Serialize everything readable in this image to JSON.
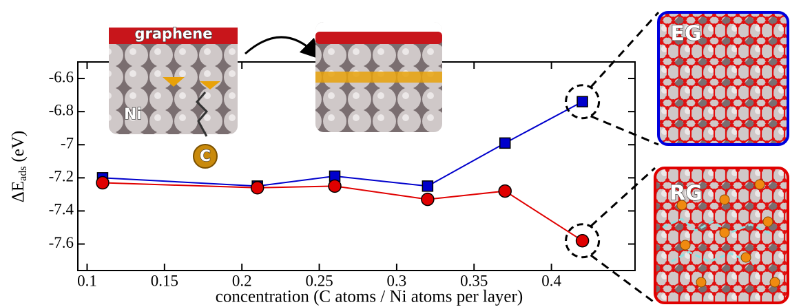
{
  "chart_data": {
    "type": "line",
    "x_label": "concentration (C atoms / Ni atoms per layer)",
    "y_label": {
      "main": "ΔE",
      "sub": "ads",
      "unit": "(eV)"
    },
    "x": [
      0.11,
      0.21,
      0.26,
      0.32,
      0.37,
      0.42
    ],
    "series": [
      {
        "color": "#0000cc",
        "marker": "square",
        "values": [
          -7.2,
          -7.25,
          -7.19,
          -7.25,
          -6.99,
          -6.74
        ]
      },
      {
        "color": "#e00000",
        "marker": "circle",
        "values": [
          -7.23,
          -7.26,
          -7.25,
          -7.33,
          -7.28,
          -7.58
        ]
      }
    ],
    "xlim": [
      0.094,
      0.454
    ],
    "ylim": [
      -7.76,
      -6.5
    ],
    "xticks": [
      0.1,
      0.15,
      0.2,
      0.25,
      0.3,
      0.35,
      0.4
    ],
    "yticks": [
      -6.6,
      -6.8,
      -7,
      -7.2,
      -7.4,
      -7.6
    ],
    "annotations": {
      "graphene": "graphene",
      "ni": "Ni",
      "carbon": "C",
      "eg": "EG",
      "rg": "RG"
    }
  }
}
